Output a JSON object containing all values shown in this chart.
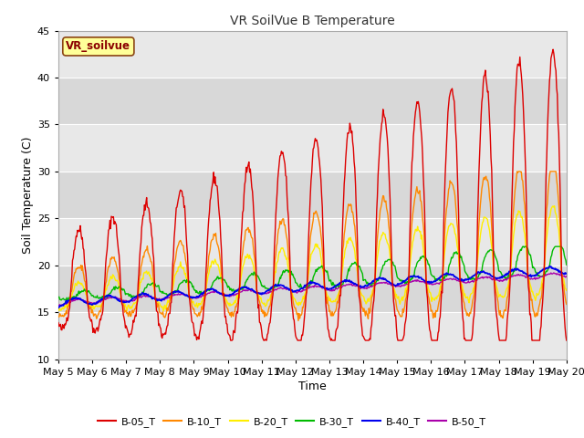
{
  "title": "VR SoilVue B Temperature",
  "xlabel": "Time",
  "ylabel": "Soil Temperature (C)",
  "ylim": [
    10,
    45
  ],
  "xlim": [
    0,
    360
  ],
  "fig_bg_color": "#ffffff",
  "plot_bg_color": "#e8e8e8",
  "legend_label": "VR_soilvue",
  "legend_bg": "#ffff99",
  "legend_border": "#8B4513",
  "series_colors": {
    "B-05_T": "#dd0000",
    "B-10_T": "#ff8800",
    "B-20_T": "#ffee00",
    "B-30_T": "#00bb00",
    "B-40_T": "#0000ee",
    "B-50_T": "#aa00aa"
  },
  "xtick_labels": [
    "May 5",
    "May 6",
    "May 7",
    "May 8",
    "May 9",
    "May 10",
    "May 11",
    "May 12",
    "May 13",
    "May 14",
    "May 15",
    "May 16",
    "May 17",
    "May 18",
    "May 19",
    "May 20"
  ],
  "xtick_positions": [
    0,
    24,
    48,
    72,
    96,
    120,
    144,
    168,
    192,
    216,
    240,
    264,
    288,
    312,
    336,
    360
  ],
  "yticks": [
    10,
    15,
    20,
    25,
    30,
    35,
    40,
    45
  ],
  "grid_color": "#d0d0d0",
  "band_colors": [
    "#e8e8e8",
    "#d8d8d8"
  ]
}
